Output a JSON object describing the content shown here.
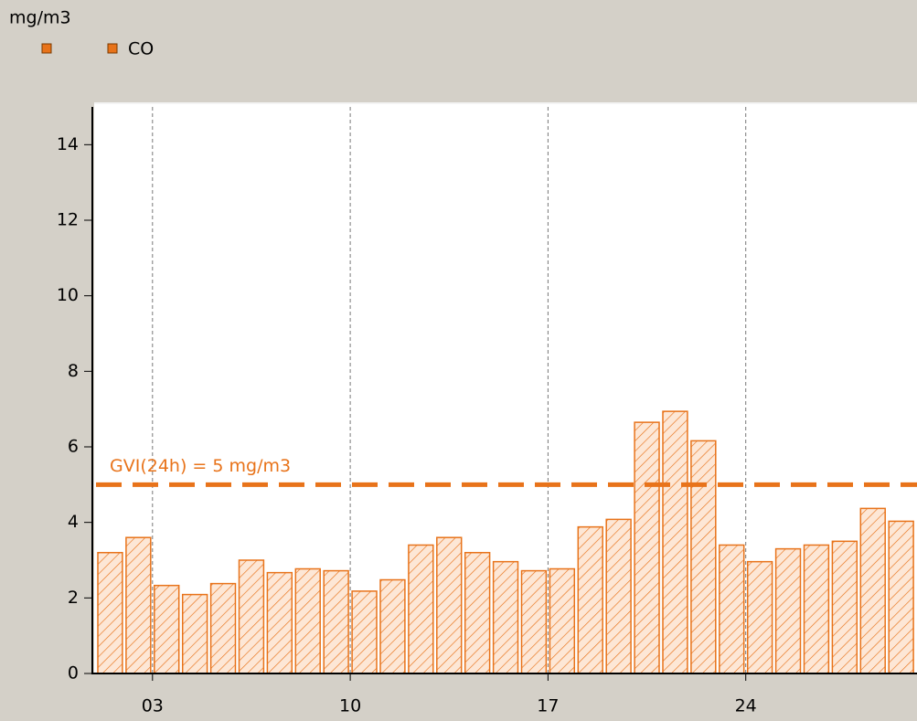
{
  "chart_data": {
    "type": "bar",
    "unit_label": "mg/m3",
    "categories": [
      null,
      null,
      "03",
      null,
      null,
      null,
      null,
      null,
      null,
      "10",
      null,
      null,
      null,
      null,
      null,
      null,
      "17",
      null,
      null,
      null,
      null,
      null,
      null,
      "24",
      null,
      null,
      null,
      null,
      null
    ],
    "series": [
      {
        "name": "CO",
        "color": "#e8731a",
        "values": [
          3.2,
          3.6,
          2.33,
          2.09,
          2.38,
          3.0,
          2.67,
          2.77,
          2.72,
          2.18,
          2.48,
          3.4,
          3.6,
          3.2,
          2.96,
          2.72,
          2.77,
          3.88,
          4.08,
          6.65,
          6.94,
          6.16,
          3.4,
          2.96,
          3.3,
          3.4,
          3.5,
          4.37,
          4.03
        ]
      }
    ],
    "ylim": [
      0,
      15
    ],
    "yticks": [
      0,
      2,
      4,
      6,
      8,
      10,
      12,
      14
    ],
    "reference": {
      "value": 5,
      "label": "GVI(24h) = 5 mg/m3"
    },
    "grid": true
  }
}
